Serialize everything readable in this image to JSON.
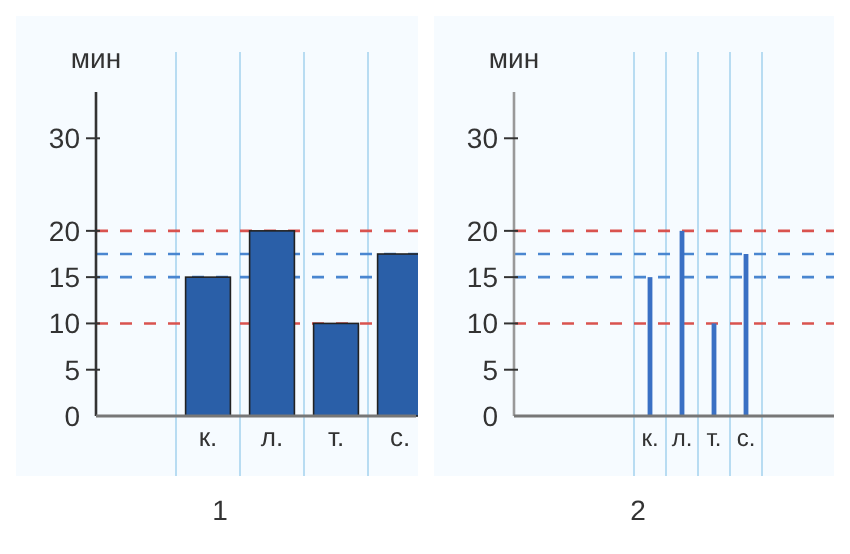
{
  "chart_data": [
    {
      "type": "bar",
      "xlabel": "1",
      "ylabel": "мин",
      "categories": [
        "к.",
        "л.",
        "т.",
        "с."
      ],
      "values": [
        15,
        20,
        10,
        17.5
      ],
      "color": "#2a5fa8",
      "ylim": [
        0,
        35
      ],
      "yticks": [
        0,
        5,
        10,
        15,
        20,
        30
      ],
      "grid": "x",
      "ref_lines": [
        {
          "axis": "y",
          "value": 20,
          "color": "#d9534f",
          "line_style": "dashed"
        },
        {
          "axis": "y",
          "value": 17.5,
          "color": "#4a86d0",
          "line_style": "dashed"
        },
        {
          "axis": "y",
          "value": 15,
          "color": "#4a86d0",
          "line_style": "dashed"
        },
        {
          "axis": "y",
          "value": 10,
          "color": "#d9534f",
          "line_style": "dashed"
        }
      ]
    },
    {
      "type": "bar",
      "xlabel": "2",
      "ylabel": "мин",
      "categories": [
        "к.",
        "л.",
        "т.",
        "с."
      ],
      "values": [
        15,
        20,
        10,
        17.5
      ],
      "color": "#3a70c4",
      "ylim": [
        0,
        35
      ],
      "yticks": [
        0,
        5,
        10,
        15,
        20,
        30
      ],
      "grid": "x",
      "ref_lines": [
        {
          "axis": "y",
          "value": 20,
          "color": "#d9534f",
          "line_style": "dashed"
        },
        {
          "axis": "y",
          "value": 17.5,
          "color": "#4a86d0",
          "line_style": "dashed"
        },
        {
          "axis": "y",
          "value": 15,
          "color": "#4a86d0",
          "line_style": "dashed"
        },
        {
          "axis": "y",
          "value": 10,
          "color": "#d9534f",
          "line_style": "dashed"
        }
      ]
    }
  ]
}
